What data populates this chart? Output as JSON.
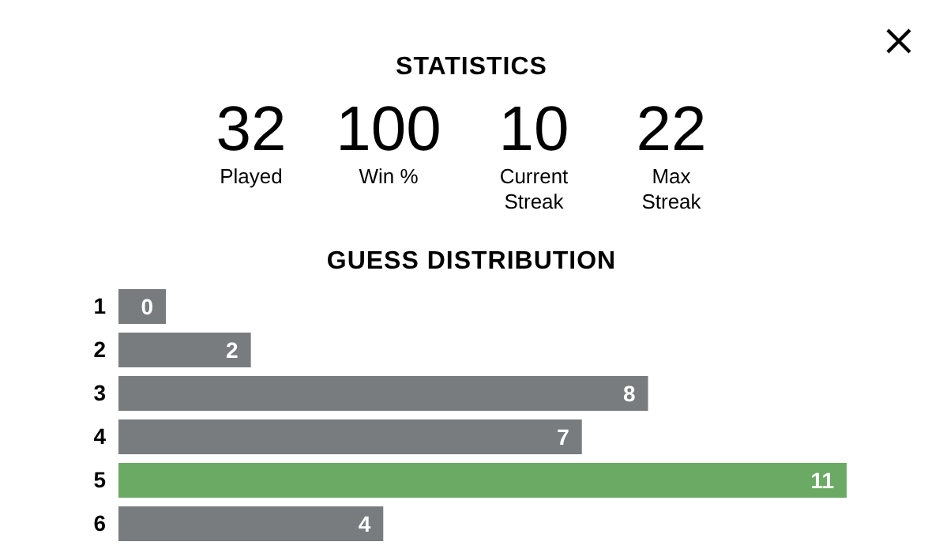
{
  "chart_data": [
    {
      "type": "other",
      "title": "STATISTICS",
      "categories": [
        "Played",
        "Win %",
        "Current Streak",
        "Max Streak"
      ],
      "values": [
        32,
        100,
        10,
        22
      ],
      "data_labels": true
    },
    {
      "type": "bar",
      "orientation": "horizontal",
      "title": "GUESS DISTRIBUTION",
      "categories": [
        "1",
        "2",
        "3",
        "4",
        "5",
        "6"
      ],
      "values": [
        0,
        2,
        8,
        7,
        11,
        4
      ],
      "colors": [
        "#787c7e",
        "#787c7e",
        "#787c7e",
        "#787c7e",
        "#6aaa64",
        "#787c7e"
      ],
      "data_labels": true
    }
  ]
}
